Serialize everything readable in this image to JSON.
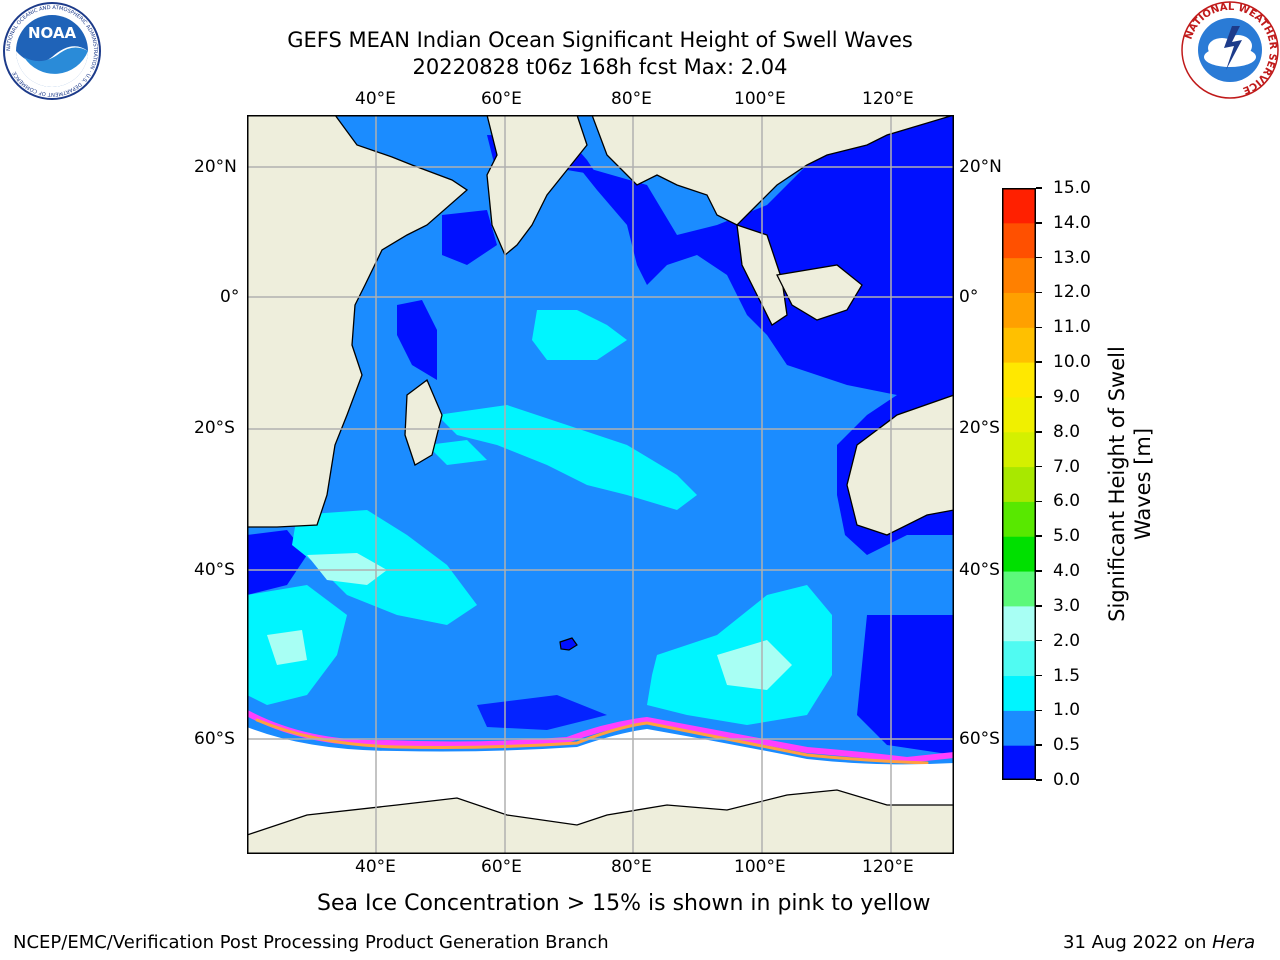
{
  "title": {
    "line1": "GEFS MEAN Indian Ocean Significant Height of Swell Waves",
    "line2": "20220828 t06z 168h fcst   Max: 2.04"
  },
  "map": {
    "lon_ticks": [
      "40°E",
      "60°E",
      "80°E",
      "100°E",
      "120°E"
    ],
    "lat_ticks": [
      "20°N",
      "0°",
      "20°S",
      "40°S",
      "60°S"
    ],
    "colors": {
      "land": "#eeeedc",
      "ocean_base": "#1b8cff",
      "coastline": "#000000",
      "gridline": "#b0b0b0"
    }
  },
  "colorbar": {
    "label_line1": "Significant Height of Swell",
    "label_line2": "Waves [m]",
    "ticks": [
      "0.0",
      "0.5",
      "1.0",
      "1.5",
      "2.0",
      "3.0",
      "4.0",
      "5.0",
      "6.0",
      "7.0",
      "8.0",
      "9.0",
      "10.0",
      "11.0",
      "12.0",
      "13.0",
      "14.0",
      "15.0"
    ],
    "colors": [
      "#0010ff",
      "#1b8cff",
      "#00f5ff",
      "#50fbf2",
      "#a8fff4",
      "#5cf97a",
      "#00e000",
      "#58e800",
      "#a8e800",
      "#d4f000",
      "#f0f000",
      "#ffe800",
      "#ffc000",
      "#ffa000",
      "#ff8000",
      "#ff5000",
      "#ff2000"
    ]
  },
  "caption": "Sea Ice Concentration > 15% is shown in pink to yellow",
  "footer": {
    "left": "NCEP/EMC/Verification Post Processing Product Generation Branch",
    "right_date": "31 Aug 2022 on ",
    "right_host": "Hera"
  },
  "logos": {
    "noaa_text": "NOAA",
    "noaa_ring_text": "NATIONAL OCEANIC AND ATMOSPHERIC ADMINISTRATION · U.S. DEPARTMENT OF COMMERCE",
    "nws_ring_text": "NATIONAL WEATHER SERVICE"
  }
}
